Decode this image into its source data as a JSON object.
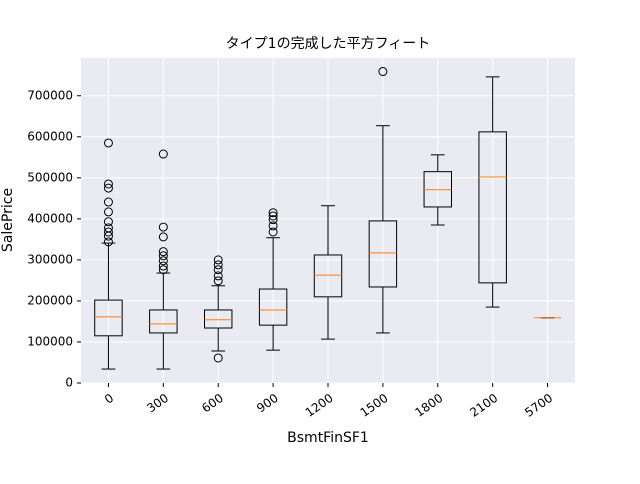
{
  "chart_data": {
    "type": "box",
    "title": "タイプ1の完成した平方フィート",
    "x_label": "BsmtFinSF1",
    "y_label": "SalePrice",
    "categories": [
      "0",
      "300",
      "600",
      "900",
      "1200",
      "1500",
      "1800",
      "2100",
      "5700"
    ],
    "boxes": [
      {
        "whislo": 34000,
        "q1": 115000,
        "med": 161000,
        "q3": 202000,
        "whishi": 341000,
        "fliers": [
          585000,
          485000,
          475000,
          441000,
          417000,
          393000,
          378000,
          368000,
          358000,
          344000
        ]
      },
      {
        "whislo": 34000,
        "q1": 122000,
        "med": 144000,
        "q3": 178000,
        "whishi": 268000,
        "fliers": [
          558000,
          380000,
          356000,
          320000,
          310000,
          298000,
          285000,
          276000
        ]
      },
      {
        "whislo": 78000,
        "q1": 134000,
        "med": 154000,
        "q3": 178000,
        "whishi": 237000,
        "fliers": [
          61000,
          300000,
          288000,
          276000,
          261000,
          249000
        ]
      },
      {
        "whislo": 80000,
        "q1": 141000,
        "med": 178000,
        "q3": 229000,
        "whishi": 354000,
        "fliers": [
          415000,
          407000,
          398000,
          383000,
          368000
        ]
      },
      {
        "whislo": 107000,
        "q1": 210000,
        "med": 263000,
        "q3": 312000,
        "whishi": 432000,
        "fliers": []
      },
      {
        "whislo": 122000,
        "q1": 234000,
        "med": 317000,
        "q3": 395000,
        "whishi": 627000,
        "fliers": [
          759000
        ]
      },
      {
        "whislo": 385000,
        "q1": 429000,
        "med": 471000,
        "q3": 515000,
        "whishi": 556000,
        "fliers": []
      },
      {
        "whislo": 185000,
        "q1": 244000,
        "med": 502000,
        "q3": 612000,
        "whishi": 746000,
        "fliers": []
      },
      {
        "whislo": 159000,
        "q1": 159000,
        "med": 159000,
        "q3": 159000,
        "whishi": 159000,
        "fliers": []
      }
    ],
    "box_color": "#000000",
    "median_color": "#ff7f0e",
    "background": "#eaeaf2",
    "grid": true,
    "ylim": [
      0,
      792000
    ],
    "yticks": [
      0,
      100000,
      200000,
      300000,
      400000,
      500000,
      600000,
      700000
    ]
  }
}
